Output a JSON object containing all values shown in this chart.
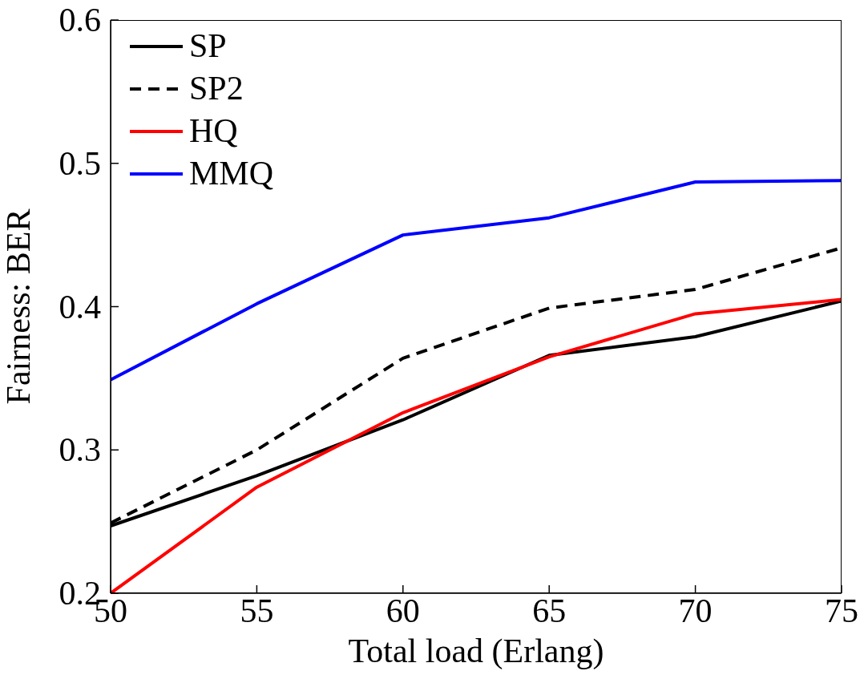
{
  "chart_data": {
    "type": "line",
    "xlabel": "Total load (Erlang)",
    "ylabel": "Fairness: BER",
    "x": [
      50,
      55,
      60,
      65,
      70,
      75
    ],
    "series": [
      {
        "name": "SP",
        "color": "#000000",
        "line_style": "solid",
        "values": [
          0.247,
          0.282,
          0.321,
          0.366,
          0.379,
          0.404
        ]
      },
      {
        "name": "SP2",
        "color": "#000000",
        "line_style": "dashed",
        "values": [
          0.249,
          0.3,
          0.364,
          0.399,
          0.412,
          0.441
        ]
      },
      {
        "name": "HQ",
        "color": "#ff0000",
        "line_style": "solid",
        "values": [
          0.2,
          0.274,
          0.326,
          0.365,
          0.395,
          0.405
        ]
      },
      {
        "name": "MMQ",
        "color": "#0000ff",
        "line_style": "solid",
        "values": [
          0.349,
          0.402,
          0.45,
          0.462,
          0.487,
          0.488
        ]
      }
    ],
    "xlim": [
      50,
      75
    ],
    "xticks": [
      50,
      55,
      60,
      65,
      70,
      75
    ],
    "ylim": [
      0.2,
      0.6
    ],
    "yticks": [
      0.2,
      0.3,
      0.4,
      0.5,
      0.6
    ],
    "legend": "top left",
    "grid": false,
    "marker": "none"
  }
}
